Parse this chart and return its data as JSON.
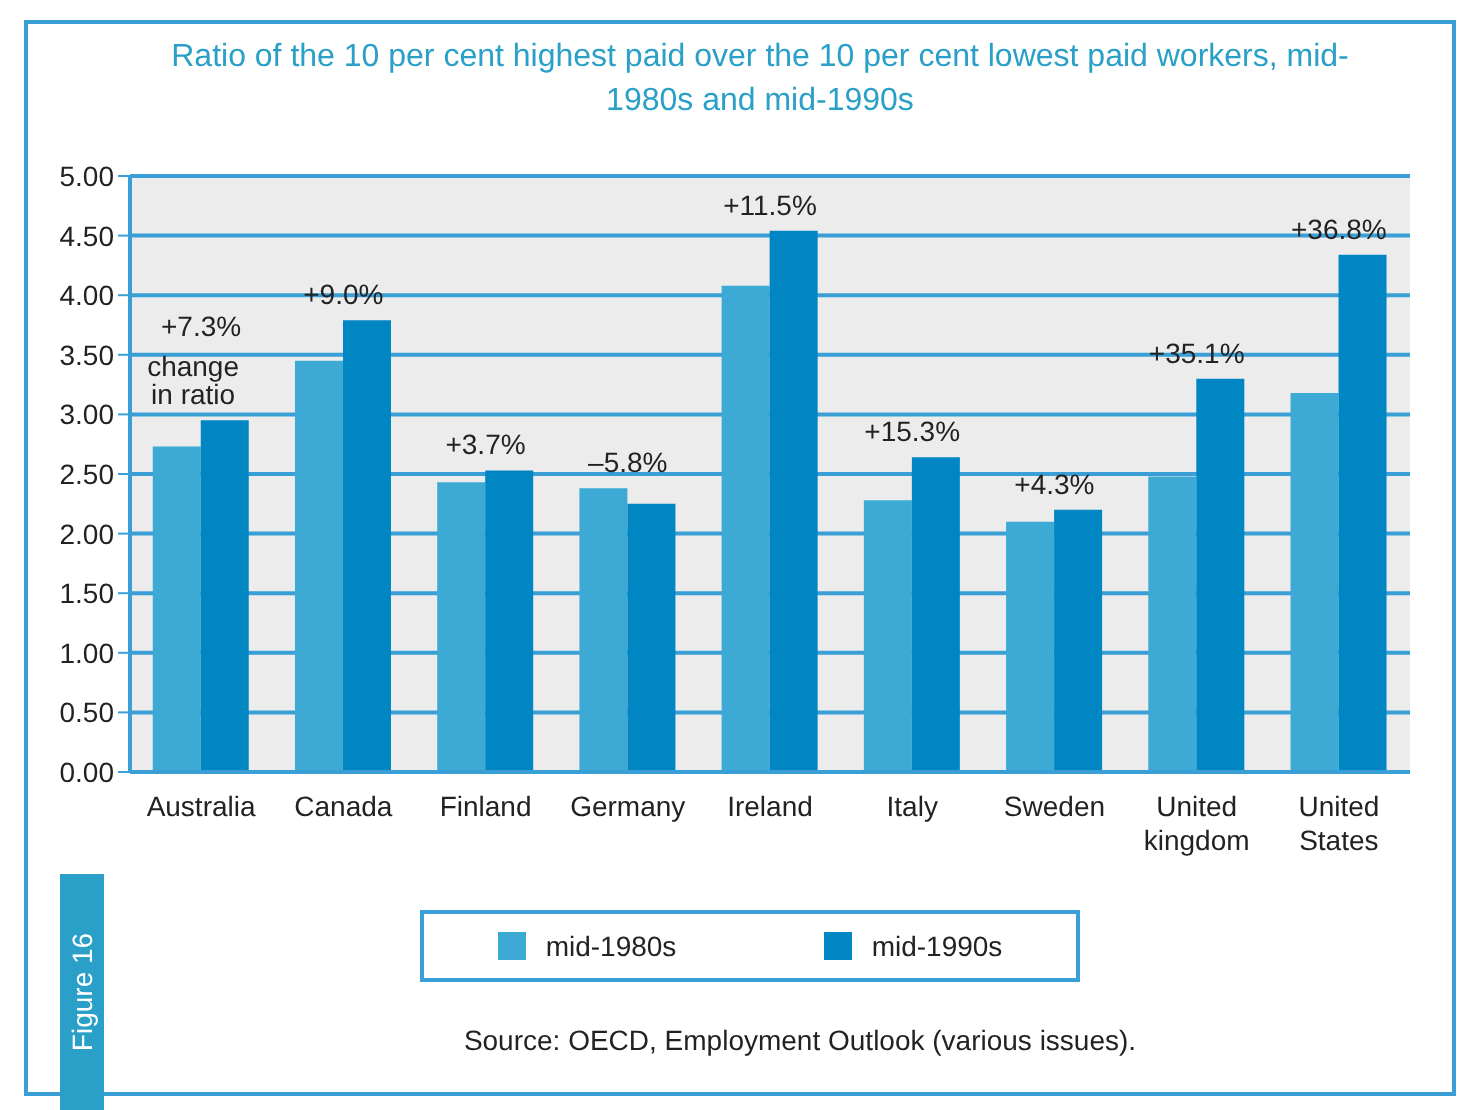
{
  "chart_data": {
    "type": "bar",
    "title": "Ratio of the 10 per cent highest paid over the 10 per cent lowest paid workers, mid-1980s and mid-1990s",
    "categories": [
      "Australia",
      "Canada",
      "Finland",
      "Germany",
      "Ireland",
      "Italy",
      "Sweden",
      "United kingdom",
      "United States"
    ],
    "series": [
      {
        "name": "mid-1980s",
        "color": "#3daad6",
        "values": [
          2.73,
          3.45,
          2.43,
          2.38,
          4.08,
          2.28,
          2.1,
          2.48,
          3.18
        ]
      },
      {
        "name": "mid-1990s",
        "color": "#0086c3",
        "values": [
          2.95,
          3.79,
          2.53,
          2.25,
          4.54,
          2.64,
          2.2,
          3.3,
          4.34
        ]
      }
    ],
    "ylim": [
      0,
      5
    ],
    "yticks": [
      {
        "value": 0,
        "label": "0.00"
      },
      {
        "value": 0.5,
        "label": "0.50"
      },
      {
        "value": 1,
        "label": "1.00"
      },
      {
        "value": 1.5,
        "label": "1.50"
      },
      {
        "value": 2,
        "label": "2.00"
      },
      {
        "value": 2.5,
        "label": "2.50"
      },
      {
        "value": 3,
        "label": "3.00"
      },
      {
        "value": 3.5,
        "label": "3.50"
      },
      {
        "value": 4,
        "label": "4.00"
      },
      {
        "value": 4.5,
        "label": "4.50"
      },
      {
        "value": 5,
        "label": "5.00"
      }
    ],
    "grid": "y",
    "legend": "bottom",
    "annotations": [
      {
        "text": "+7.3%",
        "x": "Australia",
        "y": 2.95
      },
      {
        "text": "change in ratio",
        "x": "Australia",
        "y": 2.95
      },
      {
        "text": "+9.0%",
        "x": "Canada",
        "y": 3.79
      },
      {
        "text": "+3.7%",
        "x": "Finland",
        "y": 2.53
      },
      {
        "text": "–5.8%",
        "x": "Germany",
        "y": 2.38
      },
      {
        "text": "+11.5%",
        "x": "Ireland",
        "y": 4.54
      },
      {
        "text": "+15.3%",
        "x": "Italy",
        "y": 2.64
      },
      {
        "text": "+4.3%",
        "x": "Sweden",
        "y": 2.2
      },
      {
        "text": "+35.1%",
        "x": "United kingdom",
        "y": 3.3
      },
      {
        "text": "+36.8%",
        "x": "United States",
        "y": 4.34
      },
      "Figure 16",
      "Source: OECD, Employment Outlook (various issues)."
    ]
  }
}
